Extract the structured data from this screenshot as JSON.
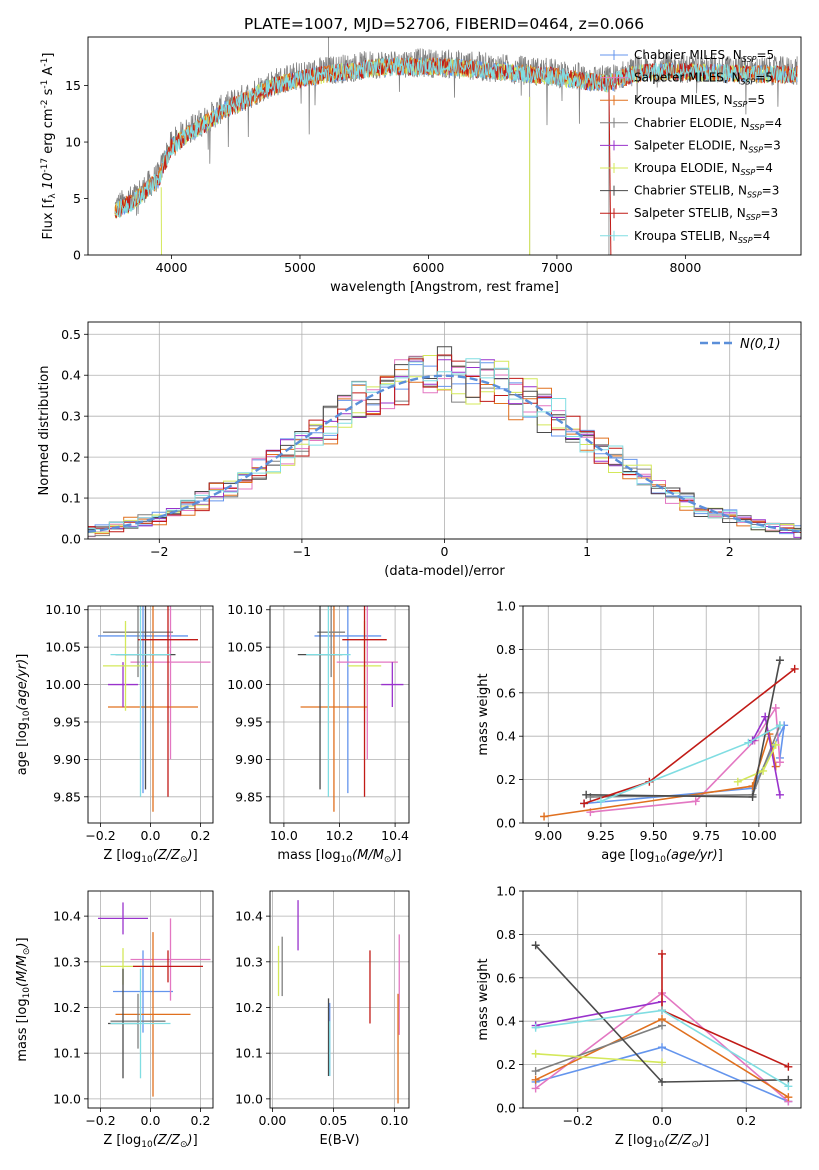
{
  "colors": {
    "c1": "#6495ed",
    "c2": "#e377c2",
    "c3": "#e0701f",
    "c4": "#7f7f7f",
    "c5": "#9932cc",
    "c6": "#d4e85a",
    "c7": "#4a4a4a",
    "c8": "#c11b17",
    "c9": "#80dde2",
    "gauss": "#5b8fd9",
    "grid": "#b0b0b0"
  },
  "chart_data": [
    {
      "type": "line",
      "title": "PLATE=1007, MJD=52706, FIBERID=0464, z=0.066",
      "xlabel": "wavelength [Angstrom, rest frame]",
      "ylabel": "Flux [f$_\\lambda 10^{-17}$ erg cm$^{-2}$ s$^{-1}$ A$^{-1}$]",
      "xlim": [
        3350,
        8900
      ],
      "ylim": [
        0,
        19.3
      ],
      "xticks": [
        4000,
        5000,
        6000,
        7000,
        8000
      ],
      "yticks": [
        0,
        5,
        10,
        15
      ],
      "legend_position": "top-right",
      "series": [
        {
          "name": "Chabrier MILES",
          "nssp": 5,
          "color_key": "c1"
        },
        {
          "name": "Salpeter MILES",
          "nssp": 5,
          "color_key": "c2"
        },
        {
          "name": "Kroupa MILES",
          "nssp": 5,
          "color_key": "c3"
        },
        {
          "name": "Chabrier ELODIE",
          "nssp": 4,
          "color_key": "c4"
        },
        {
          "name": "Salpeter ELODIE",
          "nssp": 3,
          "color_key": "c5"
        },
        {
          "name": "Kroupa ELODIE",
          "nssp": 4,
          "color_key": "c6"
        },
        {
          "name": "Chabrier STELIB",
          "nssp": 3,
          "color_key": "c7"
        },
        {
          "name": "Salpeter STELIB",
          "nssp": 3,
          "color_key": "c8"
        },
        {
          "name": "Kroupa STELIB",
          "nssp": 4,
          "color_key": "c9"
        }
      ],
      "data_envelope": {
        "x": [
          3560,
          3700,
          3800,
          3900,
          3950,
          4000,
          4100,
          4200,
          4300,
          4400,
          4500,
          4600,
          4700,
          4800,
          4900,
          5000,
          5200,
          5400,
          5600,
          5800,
          6000,
          6200,
          6400,
          6600,
          6800,
          7000,
          7200,
          7400,
          7600,
          7800,
          8000,
          8300,
          8600,
          8870
        ],
        "y": [
          4.2,
          5.0,
          6.0,
          7.0,
          8.6,
          9.8,
          10.8,
          11.5,
          12.2,
          13.0,
          13.6,
          14.1,
          14.8,
          15.3,
          15.6,
          15.9,
          16.3,
          16.6,
          16.9,
          17.0,
          17.0,
          16.9,
          16.7,
          16.5,
          16.3,
          16.1,
          15.7,
          15.5,
          16.3,
          16.6,
          16.5,
          16.4,
          16.3,
          16.3
        ]
      }
    },
    {
      "type": "bar",
      "xlabel": "(data-model)/error",
      "ylabel": "Normed distribution",
      "xlim": [
        -2.5,
        2.5
      ],
      "ylim": [
        0,
        0.53
      ],
      "xticks": [
        -2,
        -1,
        0,
        1,
        2
      ],
      "yticks": [
        0.0,
        0.1,
        0.2,
        0.3,
        0.4,
        0.5
      ],
      "bin_width": 0.1,
      "curve_label": "N(0,1)",
      "legend_position": "top-right"
    },
    {
      "type": "scatter",
      "xlabel": "Z [log$_{10}(Z/Z_\\odot)$]",
      "ylabel": "age  [log$_{10}(age/yr)$]",
      "xlim": [
        -0.25,
        0.25
      ],
      "ylim": [
        9.815,
        10.105
      ],
      "xticks": [
        -0.2,
        0.0,
        0.2
      ],
      "yticks": [
        9.85,
        9.9,
        9.95,
        10.0,
        10.05,
        10.1
      ],
      "points": [
        {
          "c": "c1",
          "x": -0.03,
          "y": 10.065,
          "xerr": 0.18,
          "yerr": 0.21
        },
        {
          "c": "c2",
          "x": 0.08,
          "y": 10.03,
          "xerr": 0.16,
          "yerr": 0.13
        },
        {
          "c": "c3",
          "x": 0.01,
          "y": 9.97,
          "xerr": 0.18,
          "yerr": 0.14
        },
        {
          "c": "c4",
          "x": -0.05,
          "y": 10.07,
          "xerr": 0.14,
          "yerr": 0.06
        },
        {
          "c": "c5",
          "x": -0.11,
          "y": 10.0,
          "xerr": 0.06,
          "yerr": 0.03
        },
        {
          "c": "c6",
          "x": -0.1,
          "y": 10.025,
          "xerr": 0.09,
          "yerr": 0.06
        },
        {
          "c": "c7",
          "x": -0.02,
          "y": 10.04,
          "xerr": 0.12,
          "yerr": 0.18
        },
        {
          "c": "c8",
          "x": 0.07,
          "y": 10.06,
          "xerr": 0.12,
          "yerr": 0.21
        },
        {
          "c": "c9",
          "x": -0.04,
          "y": 10.04,
          "xerr": 0.12,
          "yerr": 0.19
        }
      ]
    },
    {
      "type": "scatter",
      "xlabel": "mass [log$_{10}(M/M_\\odot)$]",
      "xlim": [
        9.95,
        10.45
      ],
      "ylim": [
        9.815,
        10.105
      ],
      "xticks": [
        10.0,
        10.2,
        10.4
      ],
      "yticks": [
        9.85,
        9.9,
        9.95,
        10.0,
        10.05,
        10.1
      ],
      "points": [
        {
          "c": "c1",
          "x": 10.23,
          "y": 10.065,
          "xerr": 0.12,
          "yerr": 0.21
        },
        {
          "c": "c2",
          "x": 10.3,
          "y": 10.03,
          "xerr": 0.11,
          "yerr": 0.13
        },
        {
          "c": "c3",
          "x": 10.18,
          "y": 9.97,
          "xerr": 0.12,
          "yerr": 0.14
        },
        {
          "c": "c4",
          "x": 10.17,
          "y": 10.07,
          "xerr": 0.05,
          "yerr": 0.06
        },
        {
          "c": "c5",
          "x": 10.39,
          "y": 10.0,
          "xerr": 0.04,
          "yerr": 0.03
        },
        {
          "c": "c6",
          "x": 10.29,
          "y": 10.025,
          "xerr": 0.06,
          "yerr": 0.06
        },
        {
          "c": "c7",
          "x": 10.13,
          "y": 10.04,
          "xerr": 0.08,
          "yerr": 0.18
        },
        {
          "c": "c8",
          "x": 10.29,
          "y": 10.06,
          "xerr": 0.08,
          "yerr": 0.21
        },
        {
          "c": "c9",
          "x": 10.16,
          "y": 10.04,
          "xerr": 0.08,
          "yerr": 0.19
        }
      ]
    },
    {
      "type": "line",
      "xlabel": "age  [log$_{10}(age/yr)$]",
      "ylabel": "mass weight",
      "xlim": [
        8.88,
        10.2
      ],
      "ylim": [
        0,
        1
      ],
      "xticks": [
        9.0,
        9.25,
        9.5,
        9.75,
        10.0
      ],
      "yticks": [
        0.0,
        0.2,
        0.4,
        0.6,
        0.8,
        1.0
      ],
      "series": [
        {
          "c": "c1",
          "x": [
            9.17,
            9.97,
            10.12,
            10.1
          ],
          "y": [
            0.09,
            0.16,
            0.45,
            0.3
          ]
        },
        {
          "c": "c2",
          "x": [
            9.2,
            9.7,
            9.98,
            10.08,
            10.1
          ],
          "y": [
            0.05,
            0.1,
            0.38,
            0.53,
            0.28
          ]
        },
        {
          "c": "c3",
          "x": [
            8.98,
            9.97,
            10.05,
            10.08
          ],
          "y": [
            0.03,
            0.17,
            0.41,
            0.26
          ]
        },
        {
          "c": "c4",
          "x": [
            9.2,
            9.97,
            10.1
          ],
          "y": [
            0.12,
            0.13,
            0.45
          ]
        },
        {
          "c": "c5",
          "x": [
            9.97,
            10.03,
            10.1
          ],
          "y": [
            0.38,
            0.49,
            0.13
          ]
        },
        {
          "c": "c6",
          "x": [
            9.9,
            10.02,
            10.08
          ],
          "y": [
            0.19,
            0.24,
            0.36
          ]
        },
        {
          "c": "c7",
          "x": [
            9.18,
            9.97,
            10.1
          ],
          "y": [
            0.13,
            0.12,
            0.75
          ]
        },
        {
          "c": "c8",
          "x": [
            9.17,
            9.48,
            10.17
          ],
          "y": [
            0.09,
            0.19,
            0.71
          ]
        },
        {
          "c": "c9",
          "x": [
            9.25,
            9.95,
            10.1
          ],
          "y": [
            0.1,
            0.37,
            0.45
          ]
        }
      ]
    },
    {
      "type": "scatter",
      "xlabel": "Z [log$_{10}(Z/Z_\\odot)$]",
      "ylabel": "mass [log$_{10}(M/M_\\odot)$]",
      "xlim": [
        -0.25,
        0.25
      ],
      "ylim": [
        9.98,
        10.455
      ],
      "xticks": [
        -0.2,
        0.0,
        0.2
      ],
      "yticks": [
        10.0,
        10.1,
        10.2,
        10.3,
        10.4
      ],
      "points": [
        {
          "c": "c1",
          "x": -0.03,
          "y": 10.235,
          "xerr": 0.12,
          "yerr": 0.09
        },
        {
          "c": "c2",
          "x": 0.08,
          "y": 10.305,
          "xerr": 0.16,
          "yerr": 0.09
        },
        {
          "c": "c3",
          "x": 0.01,
          "y": 10.185,
          "xerr": 0.15,
          "yerr": 0.18
        },
        {
          "c": "c4",
          "x": -0.05,
          "y": 10.17,
          "xerr": 0.11,
          "yerr": 0.06
        },
        {
          "c": "c5",
          "x": -0.11,
          "y": 10.395,
          "xerr": 0.1,
          "yerr": 0.035
        },
        {
          "c": "c6",
          "x": -0.11,
          "y": 10.29,
          "xerr": 0.09,
          "yerr": 0.04
        },
        {
          "c": "c7",
          "x": -0.11,
          "y": 10.165,
          "xerr": 0.06,
          "yerr": 0.12
        },
        {
          "c": "c8",
          "x": 0.07,
          "y": 10.29,
          "xerr": 0.14,
          "yerr": 0.035
        },
        {
          "c": "c9",
          "x": -0.04,
          "y": 10.165,
          "xerr": 0.12,
          "yerr": 0.12
        }
      ]
    },
    {
      "type": "scatter",
      "xlabel": "E(B-V)",
      "xlim": [
        -0.002,
        0.112
      ],
      "ylim": [
        9.98,
        10.455
      ],
      "xticks": [
        0.0,
        0.05,
        0.1
      ],
      "yticks": [
        10.0,
        10.1,
        10.2,
        10.3,
        10.4
      ],
      "points": [
        {
          "c": "c1",
          "x": 0.047,
          "y": 10.13,
          "xerr": 0,
          "yerr": 0.08
        },
        {
          "c": "c2",
          "x": 0.104,
          "y": 10.25,
          "xerr": 0,
          "yerr": 0.11
        },
        {
          "c": "c3",
          "x": 0.103,
          "y": 10.11,
          "xerr": 0,
          "yerr": 0.12
        },
        {
          "c": "c4",
          "x": 0.008,
          "y": 10.29,
          "xerr": 0,
          "yerr": 0.065
        },
        {
          "c": "c5",
          "x": 0.021,
          "y": 10.38,
          "xerr": 0,
          "yerr": 0.055
        },
        {
          "c": "c6",
          "x": 0.005,
          "y": 10.28,
          "xerr": 0,
          "yerr": 0.055
        },
        {
          "c": "c7",
          "x": 0.046,
          "y": 10.135,
          "xerr": 0,
          "yerr": 0.085
        },
        {
          "c": "c8",
          "x": 0.08,
          "y": 10.245,
          "xerr": 0,
          "yerr": 0.08
        },
        {
          "c": "c9",
          "x": 0.047,
          "y": 10.11,
          "xerr": 0,
          "yerr": 0.06
        }
      ]
    },
    {
      "type": "line",
      "xlabel": "Z [log$_{10}(Z/Z_\\odot)$]",
      "ylabel": "mass weight",
      "xlim": [
        -0.33,
        0.33
      ],
      "ylim": [
        0,
        1
      ],
      "xticks": [
        -0.2,
        0.0,
        0.2
      ],
      "yticks": [
        0.0,
        0.2,
        0.4,
        0.6,
        0.8,
        1.0
      ],
      "series": [
        {
          "c": "c1",
          "x": [
            -0.3,
            0.0,
            0.3
          ],
          "y": [
            0.12,
            0.28,
            0.03
          ]
        },
        {
          "c": "c2",
          "x": [
            -0.3,
            0.0,
            0.3
          ],
          "y": [
            0.09,
            0.53,
            0.03
          ]
        },
        {
          "c": "c3",
          "x": [
            -0.3,
            0.0,
            0.3
          ],
          "y": [
            0.13,
            0.41,
            0.05
          ]
        },
        {
          "c": "c4",
          "x": [
            -0.3,
            0.0
          ],
          "y": [
            0.17,
            0.38
          ]
        },
        {
          "c": "c5",
          "x": [
            -0.3,
            0.0
          ],
          "y": [
            0.38,
            0.49
          ]
        },
        {
          "c": "c6",
          "x": [
            -0.3,
            0.0
          ],
          "y": [
            0.25,
            0.21
          ]
        },
        {
          "c": "c7",
          "x": [
            -0.3,
            0.0,
            0.3
          ],
          "y": [
            0.75,
            0.12,
            0.13
          ]
        },
        {
          "c": "c8",
          "x": [
            0.0,
            0.0,
            0.3
          ],
          "y": [
            0.71,
            0.45,
            0.19
          ]
        },
        {
          "c": "c9",
          "x": [
            -0.3,
            0.0,
            0.3
          ],
          "y": [
            0.37,
            0.45,
            0.1
          ]
        }
      ]
    }
  ]
}
